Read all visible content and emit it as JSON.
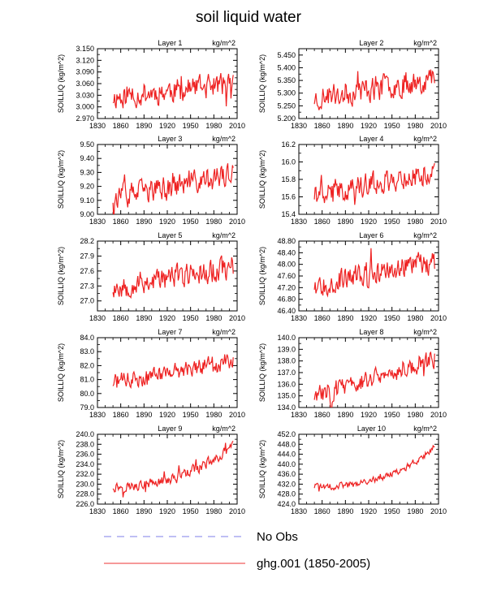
{
  "figure_title": "soil liquid water",
  "legend": [
    {
      "label": "No Obs",
      "color": "#9999ee",
      "dash": true
    },
    {
      "label": "ghg.001 (1850-2005)",
      "color": "#ee3333",
      "dash": false
    }
  ],
  "chart_data": [
    {
      "type": "line",
      "title": "Layer 1",
      "units": "kg/m^2",
      "ylabel": "SOILLIQ  (kg/m^2)",
      "xlim": [
        1830,
        2010
      ],
      "xticks": [
        1830,
        1860,
        1890,
        1920,
        1950,
        1980,
        2010
      ],
      "ylim": [
        2.97,
        3.15
      ],
      "yticks": [
        "2.970",
        "3.000",
        "3.030",
        "3.060",
        "3.090",
        "3.120",
        "3.150"
      ],
      "series": [
        {
          "name": "ghg.001 (1850-2005)",
          "x_start": 1850,
          "x_end": 2005,
          "y_start": 3.025,
          "y_end": 3.06,
          "amplitude": 0.028,
          "seed": 11
        }
      ]
    },
    {
      "type": "line",
      "title": "Layer 2",
      "units": "kg/m^2",
      "ylabel": "SOILLIQ  (kg/m^2)",
      "xlim": [
        1830,
        2010
      ],
      "xticks": [
        1830,
        1860,
        1890,
        1920,
        1950,
        1980,
        2010
      ],
      "ylim": [
        5.2,
        5.475
      ],
      "yticks": [
        "5.200",
        "5.250",
        "5.300",
        "5.350",
        "5.400",
        "5.450"
      ],
      "series": [
        {
          "name": "ghg.001 (1850-2005)",
          "x_start": 1850,
          "x_end": 2005,
          "y_start": 5.28,
          "y_end": 5.36,
          "amplitude": 0.045,
          "seed": 23
        }
      ]
    },
    {
      "type": "line",
      "title": "Layer 3",
      "units": "kg/m^2",
      "ylabel": "SOILLIQ  (kg/m^2)",
      "xlim": [
        1830,
        2010
      ],
      "xticks": [
        1830,
        1860,
        1890,
        1920,
        1950,
        1980,
        2010
      ],
      "ylim": [
        9.0,
        9.5
      ],
      "yticks": [
        "9.00",
        "9.10",
        "9.20",
        "9.30",
        "9.40",
        "9.50"
      ],
      "series": [
        {
          "name": "ghg.001 (1850-2005)",
          "x_start": 1850,
          "x_end": 2005,
          "y_start": 9.12,
          "y_end": 9.28,
          "amplitude": 0.075,
          "seed": 37
        }
      ]
    },
    {
      "type": "line",
      "title": "Layer 4",
      "units": "kg/m^2",
      "ylabel": "SOILLIQ  (kg/m^2)",
      "xlim": [
        1830,
        2010
      ],
      "xticks": [
        1830,
        1860,
        1890,
        1920,
        1950,
        1980,
        2010
      ],
      "ylim": [
        15.4,
        16.2
      ],
      "yticks": [
        "15.4",
        "15.6",
        "15.8",
        "16.0",
        "16.2"
      ],
      "series": [
        {
          "name": "ghg.001 (1850-2005)",
          "x_start": 1850,
          "x_end": 2005,
          "y_start": 15.63,
          "y_end": 15.88,
          "amplitude": 0.12,
          "seed": 41
        }
      ]
    },
    {
      "type": "line",
      "title": "Layer 5",
      "units": "kg/m^2",
      "ylabel": "SOILLIQ  (kg/m^2)",
      "xlim": [
        1830,
        2010
      ],
      "xticks": [
        1830,
        1860,
        1890,
        1920,
        1950,
        1980,
        2010
      ],
      "ylim": [
        26.8,
        28.2
      ],
      "yticks": [
        "27.0",
        "27.3",
        "27.6",
        "27.9",
        "28.2"
      ],
      "series": [
        {
          "name": "ghg.001 (1850-2005)",
          "x_start": 1850,
          "x_end": 2005,
          "y_start": 27.28,
          "y_end": 27.68,
          "amplitude": 0.22,
          "seed": 53
        }
      ]
    },
    {
      "type": "line",
      "title": "Layer 6",
      "units": "kg/m^2",
      "ylabel": "SOILLIQ  (kg/m^2)",
      "xlim": [
        1830,
        2010
      ],
      "xticks": [
        1830,
        1860,
        1890,
        1920,
        1950,
        1980,
        2010
      ],
      "ylim": [
        46.4,
        48.8
      ],
      "yticks": [
        "46.40",
        "46.80",
        "47.20",
        "47.60",
        "48.00",
        "48.40",
        "48.80"
      ],
      "series": [
        {
          "name": "ghg.001 (1850-2005)",
          "x_start": 1850,
          "x_end": 2005,
          "y_start": 47.3,
          "y_end": 48.1,
          "amplitude": 0.36,
          "seed": 67
        }
      ]
    },
    {
      "type": "line",
      "title": "Layer 7",
      "units": "kg/m^2",
      "ylabel": "SOILLIQ  (kg/m^2)",
      "xlim": [
        1830,
        2010
      ],
      "xticks": [
        1830,
        1860,
        1890,
        1920,
        1950,
        1980,
        2010
      ],
      "ylim": [
        79.0,
        84.0
      ],
      "yticks": [
        "79.0",
        "80.0",
        "81.0",
        "82.0",
        "83.0",
        "84.0"
      ],
      "series": [
        {
          "name": "ghg.001 (1850-2005)",
          "x_start": 1850,
          "x_end": 2005,
          "y_start": 80.8,
          "y_end": 82.4,
          "amplitude": 0.55,
          "seed": 71
        }
      ]
    },
    {
      "type": "line",
      "title": "Layer 8",
      "units": "kg/m^2",
      "ylabel": "SOILLIQ  (kg/m^2)",
      "xlim": [
        1830,
        2010
      ],
      "xticks": [
        1830,
        1860,
        1890,
        1920,
        1950,
        1980,
        2010
      ],
      "ylim": [
        134.0,
        140.0
      ],
      "yticks": [
        "134.0",
        "135.0",
        "136.0",
        "137.0",
        "138.0",
        "139.0",
        "140.0"
      ],
      "series": [
        {
          "name": "ghg.001 (1850-2005)",
          "x_start": 1850,
          "x_end": 2005,
          "y_start": 135.0,
          "y_end": 138.2,
          "amplitude": 0.75,
          "seed": 83
        }
      ]
    },
    {
      "type": "line",
      "title": "Layer 9",
      "units": "kg/m^2",
      "ylabel": "SOILLIQ  (kg/m^2)",
      "xlim": [
        1830,
        2010
      ],
      "xticks": [
        1830,
        1860,
        1890,
        1920,
        1950,
        1980,
        2010
      ],
      "ylim": [
        226.0,
        240.0
      ],
      "yticks": [
        "226.0",
        "228.0",
        "230.0",
        "232.0",
        "234.0",
        "236.0",
        "238.0",
        "240.0"
      ],
      "series": [
        {
          "name": "ghg.001 (1850-2005)",
          "x_start": 1850,
          "x_end": 2005,
          "y_start": 229.5,
          "y_end": 237.5,
          "amplitude": 0.9,
          "curve": 2.2,
          "seed": 97
        }
      ]
    },
    {
      "type": "line",
      "title": "Layer 10",
      "units": "kg/m^2",
      "ylabel": "SOILLIQ  (kg/m^2)",
      "xlim": [
        1830,
        2010
      ],
      "xticks": [
        1830,
        1860,
        1890,
        1920,
        1950,
        1980,
        2010
      ],
      "ylim": [
        424.0,
        452.0
      ],
      "yticks": [
        "424.0",
        "428.0",
        "432.0",
        "436.0",
        "440.0",
        "444.0",
        "448.0",
        "452.0"
      ],
      "series": [
        {
          "name": "ghg.001 (1850-2005)",
          "x_start": 1850,
          "x_end": 2005,
          "y_start": 431.0,
          "y_end": 446.5,
          "amplitude": 1.2,
          "curve": 2.5,
          "seed": 101
        }
      ]
    }
  ]
}
